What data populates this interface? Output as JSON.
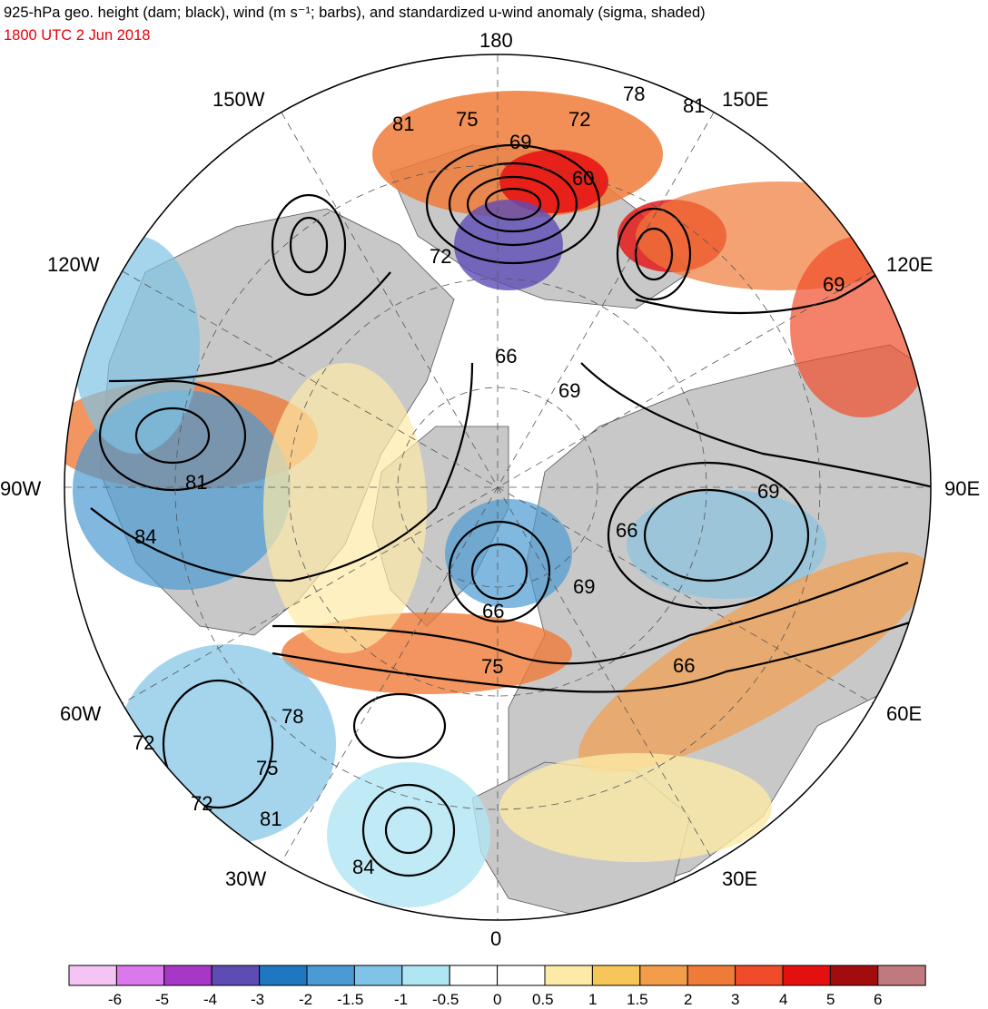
{
  "header": {
    "title": "925-hPa geo. height (dam; black), wind (m s⁻¹; barbs), and standardized u-wind anomaly (sigma, shaded)",
    "timestamp": "1800 UTC 2 Jun 2018"
  },
  "map": {
    "projection": "north-polar-stereographic",
    "land_color": "#c8c8c8",
    "ocean_color": "#ffffff",
    "longitude_labels": [
      "180",
      "150E",
      "120E",
      "90E",
      "60E",
      "30E",
      "0",
      "30W",
      "60W",
      "90W",
      "120W",
      "150W"
    ],
    "contour_labels": [
      "78",
      "81",
      "81",
      "75",
      "72",
      "69",
      "60",
      "72",
      "69",
      "66",
      "69",
      "81",
      "84",
      "69",
      "66",
      "69",
      "66",
      "75",
      "66",
      "72",
      "78",
      "75",
      "72",
      "81",
      "84"
    ]
  },
  "colorbar": {
    "labels": [
      "-6",
      "-5",
      "-4",
      "-3",
      "-2",
      "-1.5",
      "-1",
      "-0.5",
      "0",
      "0.5",
      "1",
      "1.5",
      "2",
      "3",
      "4",
      "5",
      "6"
    ],
    "colors": [
      "#f5c4f5",
      "#da78ec",
      "#a637c7",
      "#5e4cb5",
      "#1e77c1",
      "#4a9ad3",
      "#7fc3e6",
      "#b0e5f3",
      "#ffffff",
      "#ffffff",
      "#fdeaa6",
      "#f7c65a",
      "#f39d4a",
      "#ef7b38",
      "#f04b2a",
      "#e60f10",
      "#a20c0c",
      "#c0797f"
    ]
  }
}
